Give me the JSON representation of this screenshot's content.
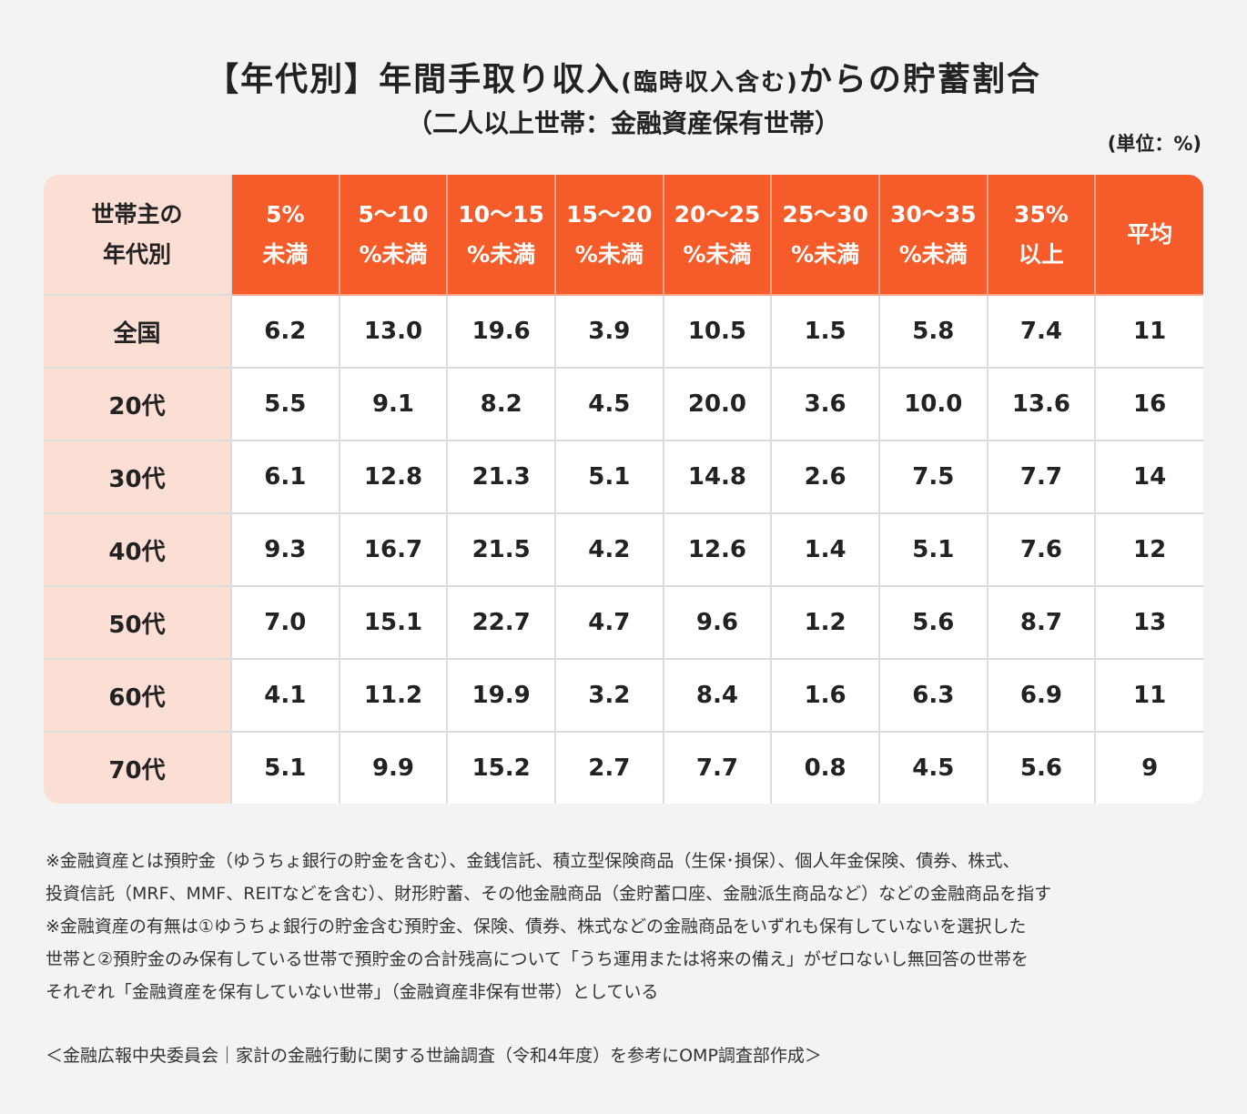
{
  "title": {
    "pre": "【年代別】年間手取り収入",
    "small": "(臨時収入含む)",
    "post": "からの貯蓄割合"
  },
  "subtitle": "（二人以上世帯：金融資産保有世帯）",
  "unit": "(単位：%)",
  "colors": {
    "header": "#f55c2a",
    "row_header": "#fbdfd4",
    "background": "#f3f3f3"
  },
  "chart_data": {
    "type": "table",
    "columns": [
      "世帯主の\n年代別",
      "5%\n未満",
      "5〜10\n%未満",
      "10〜15\n%未満",
      "15〜20\n%未満",
      "20〜25\n%未満",
      "25〜30\n%未満",
      "30〜35\n%未満",
      "35%\n以上",
      "平均"
    ],
    "rows": [
      {
        "label": "全国",
        "values": [
          "6.2",
          "13.0",
          "19.6",
          "3.9",
          "10.5",
          "1.5",
          "5.8",
          "7.4",
          "11"
        ]
      },
      {
        "label": "20代",
        "values": [
          "5.5",
          "9.1",
          "8.2",
          "4.5",
          "20.0",
          "3.6",
          "10.0",
          "13.6",
          "16"
        ]
      },
      {
        "label": "30代",
        "values": [
          "6.1",
          "12.8",
          "21.3",
          "5.1",
          "14.8",
          "2.6",
          "7.5",
          "7.7",
          "14"
        ]
      },
      {
        "label": "40代",
        "values": [
          "9.3",
          "16.7",
          "21.5",
          "4.2",
          "12.6",
          "1.4",
          "5.1",
          "7.6",
          "12"
        ]
      },
      {
        "label": "50代",
        "values": [
          "7.0",
          "15.1",
          "22.7",
          "4.7",
          "9.6",
          "1.2",
          "5.6",
          "8.7",
          "13"
        ]
      },
      {
        "label": "60代",
        "values": [
          "4.1",
          "11.2",
          "19.9",
          "3.2",
          "8.4",
          "1.6",
          "6.3",
          "6.9",
          "11"
        ]
      },
      {
        "label": "70代",
        "values": [
          "5.1",
          "9.9",
          "15.2",
          "2.7",
          "7.7",
          "0.8",
          "4.5",
          "5.6",
          "9"
        ]
      }
    ]
  },
  "notes": [
    "※金融資産とは預貯金（ゆうちょ銀行の貯金を含む）、金銭信託、積立型保険商品（生保･損保）、個人年金保険、債券、株式、",
    "投資信託（MRF、MMF、REITなどを含む）、財形貯蓄、その他金融商品（金貯蓄口座、金融派生商品など）などの金融商品を指す",
    "※金融資産の有無は①ゆうちょ銀行の貯金含む預貯金、保険、債券、株式などの金融商品をいずれも保有していないを選択した",
    "世帯と②預貯金のみ保有している世帯で預貯金の合計残高について「うち運用または将来の備え」がゼロないし無回答の世帯を",
    "それぞれ「金融資産を保有していない世帯」（金融資産非保有世帯）としている"
  ],
  "source": "＜金融広報中央委員会｜家計の金融行動に関する世論調査（令和4年度）を参考にOMP調査部作成＞"
}
